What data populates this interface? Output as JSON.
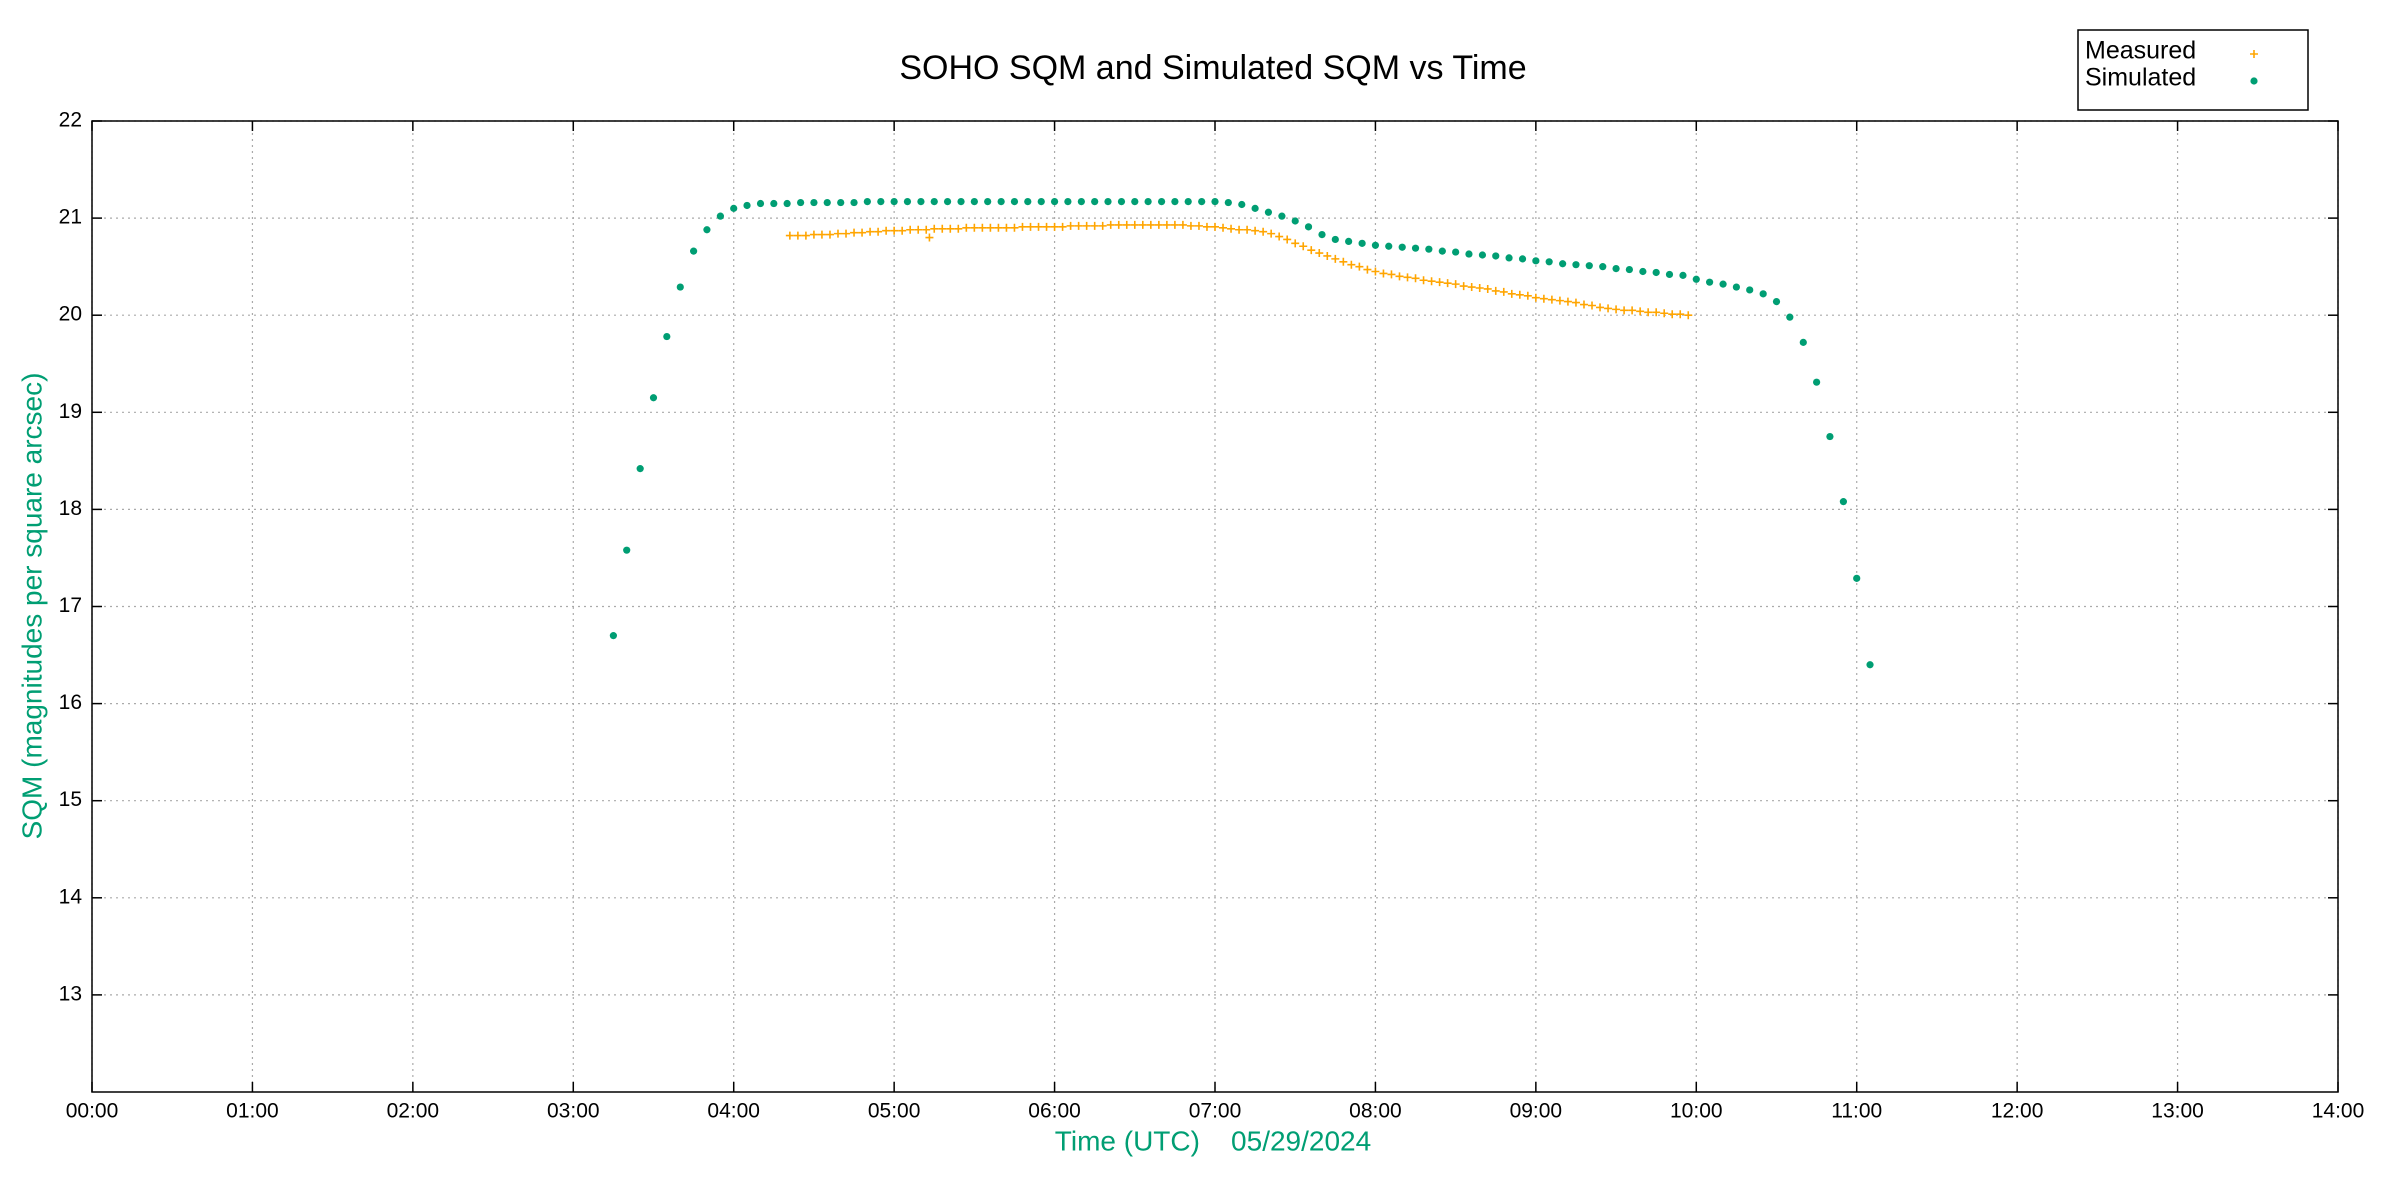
{
  "chart_data": {
    "type": "scatter",
    "title": "SOHO SQM and Simulated SQM vs Time",
    "x_label": "Time (UTC)    05/29/2024",
    "y_label": "SQM (magnitudes per square arcsec)",
    "xlim": [
      0,
      14
    ],
    "ylim": [
      12,
      22
    ],
    "xticks": [
      {
        "value": 0,
        "label": "00:00"
      },
      {
        "value": 1,
        "label": "01:00"
      },
      {
        "value": 2,
        "label": "02:00"
      },
      {
        "value": 3,
        "label": "03:00"
      },
      {
        "value": 4,
        "label": "04:00"
      },
      {
        "value": 5,
        "label": "05:00"
      },
      {
        "value": 6,
        "label": "06:00"
      },
      {
        "value": 7,
        "label": "07:00"
      },
      {
        "value": 8,
        "label": "08:00"
      },
      {
        "value": 9,
        "label": "09:00"
      },
      {
        "value": 10,
        "label": "10:00"
      },
      {
        "value": 11,
        "label": "11:00"
      },
      {
        "value": 12,
        "label": "12:00"
      },
      {
        "value": 13,
        "label": "13:00"
      },
      {
        "value": 14,
        "label": "14:00"
      }
    ],
    "yticks": [
      13,
      14,
      15,
      16,
      17,
      18,
      19,
      20,
      21,
      22
    ],
    "grid": true,
    "legend": "top-right",
    "series": [
      {
        "name": "Measured",
        "color": "#ffa500",
        "marker": "plus",
        "x": [
          4.35,
          4.4,
          4.45,
          4.5,
          4.55,
          4.6,
          4.65,
          4.7,
          4.75,
          4.8,
          4.85,
          4.9,
          4.95,
          5.0,
          5.05,
          5.1,
          5.15,
          5.2,
          5.25,
          5.3,
          5.35,
          5.4,
          5.45,
          5.5,
          5.55,
          5.6,
          5.65,
          5.7,
          5.75,
          5.8,
          5.85,
          5.9,
          5.95,
          6.0,
          6.05,
          6.1,
          6.15,
          6.2,
          6.25,
          6.3,
          6.35,
          6.4,
          6.45,
          6.5,
          6.55,
          6.6,
          6.65,
          6.7,
          6.75,
          6.8,
          6.85,
          6.9,
          6.95,
          7.0,
          7.05,
          7.1,
          7.15,
          7.2,
          7.25,
          7.3,
          7.35,
          7.4,
          7.45,
          7.5,
          7.55,
          7.6,
          7.65,
          7.7,
          7.75,
          7.8,
          7.85,
          7.9,
          7.95,
          8.0,
          8.05,
          8.1,
          8.15,
          8.2,
          8.25,
          8.3,
          8.35,
          8.4,
          8.45,
          8.5,
          8.55,
          8.6,
          8.65,
          8.7,
          8.75,
          8.8,
          8.85,
          8.9,
          8.95,
          9.0,
          9.05,
          9.1,
          9.15,
          9.2,
          9.25,
          9.3,
          9.35,
          9.4,
          9.45,
          9.5,
          9.55,
          9.6,
          9.65,
          9.7,
          9.75,
          9.8,
          9.85,
          9.9,
          9.95,
          5.22
        ],
        "values": [
          20.82,
          20.82,
          20.82,
          20.83,
          20.83,
          20.83,
          20.84,
          20.84,
          20.85,
          20.85,
          20.86,
          20.86,
          20.87,
          20.87,
          20.87,
          20.88,
          20.88,
          20.88,
          20.89,
          20.89,
          20.89,
          20.89,
          20.9,
          20.9,
          20.9,
          20.9,
          20.9,
          20.9,
          20.9,
          20.91,
          20.91,
          20.91,
          20.91,
          20.91,
          20.91,
          20.92,
          20.92,
          20.92,
          20.92,
          20.92,
          20.93,
          20.93,
          20.93,
          20.93,
          20.93,
          20.93,
          20.93,
          20.93,
          20.93,
          20.93,
          20.92,
          20.92,
          20.91,
          20.91,
          20.9,
          20.89,
          20.88,
          20.88,
          20.87,
          20.86,
          20.84,
          20.81,
          20.78,
          20.74,
          20.71,
          20.67,
          20.64,
          20.61,
          20.58,
          20.55,
          20.52,
          20.5,
          20.47,
          20.45,
          20.43,
          20.42,
          20.4,
          20.39,
          20.38,
          20.36,
          20.35,
          20.34,
          20.33,
          20.32,
          20.3,
          20.29,
          20.28,
          20.27,
          20.25,
          20.24,
          20.22,
          20.21,
          20.2,
          20.18,
          20.17,
          20.16,
          20.15,
          20.14,
          20.13,
          20.11,
          20.1,
          20.08,
          20.07,
          20.06,
          20.05,
          20.05,
          20.04,
          20.03,
          20.03,
          20.02,
          20.01,
          20.01,
          20.0,
          20.8
        ]
      },
      {
        "name": "Simulated",
        "color": "#009e73",
        "marker": "dot",
        "x": [
          3.25,
          3.333,
          3.417,
          3.5,
          3.583,
          3.667,
          3.75,
          3.833,
          3.917,
          4.0,
          4.083,
          4.167,
          4.25,
          4.333,
          4.417,
          4.5,
          4.583,
          4.667,
          4.75,
          4.833,
          4.917,
          5.0,
          5.083,
          5.167,
          5.25,
          5.333,
          5.417,
          5.5,
          5.583,
          5.667,
          5.75,
          5.833,
          5.917,
          6.0,
          6.083,
          6.167,
          6.25,
          6.333,
          6.417,
          6.5,
          6.583,
          6.667,
          6.75,
          6.833,
          6.917,
          7.0,
          7.083,
          7.167,
          7.25,
          7.333,
          7.417,
          7.5,
          7.583,
          7.667,
          7.75,
          7.833,
          7.917,
          8.0,
          8.083,
          8.167,
          8.25,
          8.333,
          8.417,
          8.5,
          8.583,
          8.667,
          8.75,
          8.833,
          8.917,
          9.0,
          9.083,
          9.167,
          9.25,
          9.333,
          9.417,
          9.5,
          9.583,
          9.667,
          9.75,
          9.833,
          9.917,
          10.0,
          10.083,
          10.167,
          10.25,
          10.333,
          10.417,
          10.5,
          10.583,
          10.667,
          10.75,
          10.833,
          10.917,
          11.0,
          11.083
        ],
        "values": [
          16.7,
          17.58,
          18.42,
          19.15,
          19.78,
          20.29,
          20.66,
          20.88,
          21.02,
          21.1,
          21.13,
          21.15,
          21.15,
          21.15,
          21.16,
          21.16,
          21.16,
          21.16,
          21.16,
          21.17,
          21.17,
          21.17,
          21.17,
          21.17,
          21.17,
          21.17,
          21.17,
          21.17,
          21.17,
          21.17,
          21.17,
          21.17,
          21.17,
          21.17,
          21.17,
          21.17,
          21.17,
          21.17,
          21.17,
          21.17,
          21.17,
          21.17,
          21.17,
          21.17,
          21.17,
          21.17,
          21.16,
          21.14,
          21.1,
          21.06,
          21.02,
          20.97,
          20.91,
          20.83,
          20.78,
          20.76,
          20.74,
          20.72,
          20.71,
          20.7,
          20.69,
          20.68,
          20.66,
          20.65,
          20.63,
          20.62,
          20.61,
          20.59,
          20.58,
          20.56,
          20.55,
          20.53,
          20.52,
          20.51,
          20.5,
          20.48,
          20.47,
          20.45,
          20.44,
          20.42,
          20.41,
          20.37,
          20.34,
          20.32,
          20.29,
          20.26,
          20.22,
          20.14,
          19.98,
          19.72,
          19.31,
          18.75,
          18.08,
          17.29,
          16.4
        ]
      }
    ]
  }
}
